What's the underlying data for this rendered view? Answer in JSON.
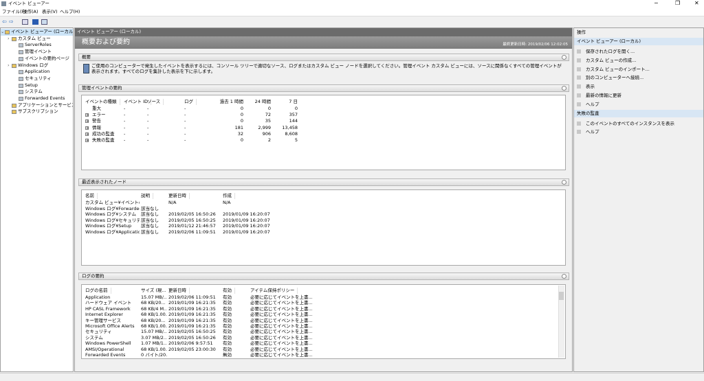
{
  "window": {
    "title": "イベント ビューアー"
  },
  "menu": [
    "ファイル(F)",
    "操作(A)",
    "表示(V)",
    "ヘルプ(H)"
  ],
  "tree": [
    {
      "label": "イベント ビューアー (ローカル)",
      "children": [
        {
          "label": "カスタム ビュー",
          "children": [
            {
              "label": "ServerRoles"
            },
            {
              "label": "管理イベント"
            },
            {
              "label": "イベントの要約ページ"
            }
          ]
        },
        {
          "label": "Windows ログ",
          "children": [
            {
              "label": "Application"
            },
            {
              "label": "セキュリティ"
            },
            {
              "label": "Setup"
            },
            {
              "label": "システム"
            },
            {
              "label": "Forwarded Events"
            }
          ]
        },
        {
          "label": "アプリケーションとサービス ログ"
        },
        {
          "label": "サブスクリプション"
        }
      ]
    }
  ],
  "center": {
    "header": "イベント ビューアー (ローカル)",
    "banner": {
      "title": "概要および要約",
      "updated": "最終更新日時: 2019/02/06 12:02:05"
    },
    "overview": {
      "title": "概要",
      "text": "ご使用のコンピューターで発生したイベントを表示するには、コンソール ツリーで適切なソース、ログまたはカスタム ビュー ノードを選択してください。管理イベント カスタム ビューには、ソースに関係なくすべての管理イベントが表示されます。すべてのログを集計した表示を下に示します。"
    },
    "admin_summary": {
      "title": "管理イベントの要約",
      "columns": [
        "イベントの種類",
        "イベント ID",
        "ソース",
        "ログ",
        "過去 1 時間",
        "24 時間",
        "7 日"
      ],
      "rows": [
        [
          "重大",
          "-",
          "-",
          "-",
          "0",
          "0",
          "0"
        ],
        [
          "エラー",
          "-",
          "-",
          "-",
          "0",
          "72",
          "357"
        ],
        [
          "警告",
          "-",
          "-",
          "-",
          "0",
          "35",
          "144"
        ],
        [
          "情報",
          "-",
          "-",
          "-",
          "181",
          "2,999",
          "13,458"
        ],
        [
          "成功の監査",
          "-",
          "-",
          "-",
          "32",
          "906",
          "8,608"
        ],
        [
          "失敗の監査",
          "-",
          "-",
          "-",
          "0",
          "2",
          "5"
        ]
      ]
    },
    "recent_nodes": {
      "title": "最近表示されたノード",
      "columns": [
        "名前",
        "説明",
        "更新日時",
        "作成"
      ],
      "rows": [
        [
          "カスタム ビュー¥イベントの要...",
          null,
          "N/A",
          "N/A"
        ],
        [
          "Windows ログ¥Forwarded E...",
          "該当なし",
          null,
          null
        ],
        [
          "Windows ログ¥システム",
          "該当なし",
          "2019/02/05 16:50:26",
          "2019/01/09 16:20:07"
        ],
        [
          "Windows ログ¥セキュリティ",
          "該当なし",
          "2019/02/05 16:50:25",
          "2019/01/09 16:20:07"
        ],
        [
          "Windows ログ¥Setup",
          "該当なし",
          "2019/01/12 21:46:57",
          "2019/01/09 16:20:07"
        ],
        [
          "Windows ログ¥Application",
          "該当なし",
          "2019/02/06 11:09:51",
          "2019/01/09 16:20:07"
        ]
      ]
    },
    "log_summary": {
      "title": "ログの要約",
      "columns": [
        "ログの名前",
        "サイズ (現...",
        "更新日時",
        "有効",
        "アイテム保持ポリシー"
      ],
      "rows": [
        [
          "Application",
          "15.07 MB/...",
          "2019/02/06 11:09:51",
          "有効",
          "必要に応じてイベントを上書..."
        ],
        [
          "ハードウェア イベント",
          "68 KB/20...",
          "2019/01/09 16:21:35",
          "有効",
          "必要に応じてイベントを上書..."
        ],
        [
          "HP CASL Framework",
          "68 KB/4 M...",
          "2019/01/09 16:21:35",
          "有効",
          "必要に応じてイベントを上書..."
        ],
        [
          "Internet Explorer",
          "68 KB/1.00...",
          "2019/01/09 16:21:35",
          "有効",
          "必要に応じてイベントを上書..."
        ],
        [
          "キー管理サービス",
          "68 KB/20...",
          "2019/01/09 16:21:35",
          "有効",
          "必要に応じてイベントを上書..."
        ],
        [
          "Microsoft Office Alerts",
          "68 KB/1.00...",
          "2019/01/09 16:21:35",
          "有効",
          "必要に応じてイベントを上書..."
        ],
        [
          "セキュリティ",
          "15.07 MB/...",
          "2019/02/05 16:50:25",
          "有効",
          "必要に応じてイベントを上書..."
        ],
        [
          "システム",
          "3.07 MB/2...",
          "2019/02/05 16:50:26",
          "有効",
          "必要に応じてイベントを上書..."
        ],
        [
          "Windows PowerShell",
          "1.07 MB/1...",
          "2019/02/06 9:57:51",
          "有効",
          "必要に応じてイベントを上書..."
        ],
        [
          "AMSI/Operational",
          "68 KB/1.00...",
          "2019/02/05 23:00:30",
          "有効",
          "必要に応じてイベントを上書..."
        ],
        [
          "Forwarded Events",
          "0 バイト/20...",
          null,
          "無効",
          "必要に応じてイベントを上書..."
        ]
      ]
    }
  },
  "actions": {
    "title": "操作",
    "groups": [
      {
        "title": "イベント ビューアー (ローカル)",
        "items": [
          "保存されたログを開く...",
          "カスタム ビューの作成...",
          "カスタム ビューのインポート...",
          "別のコンピューターへ接続...",
          "表示",
          "最新の情報に更新",
          "ヘルプ"
        ]
      },
      {
        "title": "失敗の監査",
        "items": [
          "このイベントのすべてのインスタンスを表示",
          "ヘルプ"
        ]
      }
    ]
  }
}
